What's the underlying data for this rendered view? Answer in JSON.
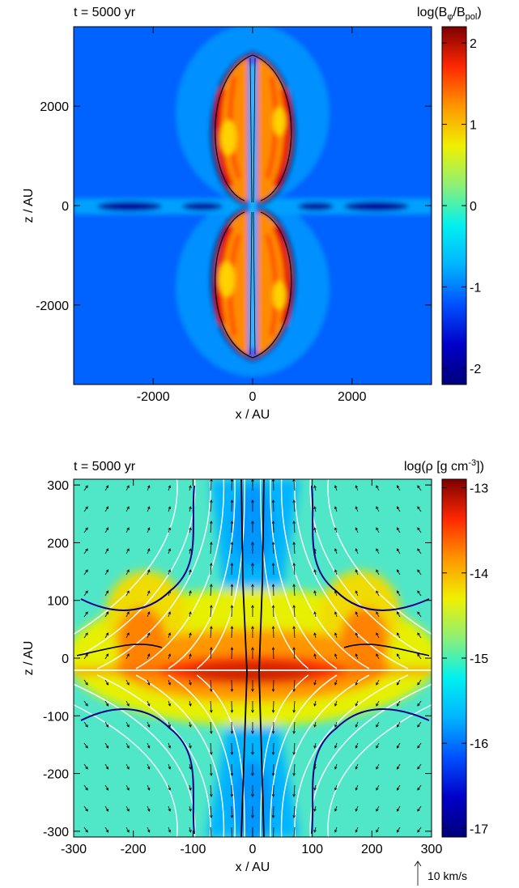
{
  "colormap": [
    "#00007a",
    "#0000c8",
    "#0050ff",
    "#00b4ff",
    "#00f0f0",
    "#8cf078",
    "#f0f000",
    "#ff9600",
    "#ff2800",
    "#7d0000"
  ],
  "chart_data": [
    {
      "type": "heatmap",
      "time_label": "t = 5000 yr",
      "xlabel": "x / AU",
      "ylabel": "z / AU",
      "xlim": [
        -3600,
        3600
      ],
      "ylim": [
        -3600,
        3600
      ],
      "xticks": [
        -2000,
        0,
        2000
      ],
      "yticks": [
        -2000,
        0,
        2000
      ],
      "colorbar": {
        "label_main": "log(B",
        "label_sub1": "φ",
        "label_mid": "/B",
        "label_sub2": "pol",
        "label_end": ")",
        "range": [
          -2.2,
          2.2
        ],
        "ticks": [
          -2,
          -1,
          0,
          1,
          2
        ]
      }
    },
    {
      "type": "heatmap",
      "time_label": "t = 5000 yr",
      "xlabel": "x / AU",
      "ylabel": "z / AU",
      "xlim": [
        -300,
        300
      ],
      "ylim": [
        -310,
        310
      ],
      "xticks": [
        -300,
        -200,
        -100,
        0,
        100,
        200,
        300
      ],
      "yticks": [
        -300,
        -200,
        -100,
        0,
        100,
        200,
        300
      ],
      "colorbar": {
        "label_main": "log(ρ [g cm",
        "label_sup": "-3",
        "label_end": "])",
        "range": [
          -17.1,
          -12.9
        ],
        "ticks": [
          -17,
          -16,
          -15,
          -14,
          -13
        ]
      },
      "velocity_key": "10 km/s"
    }
  ]
}
